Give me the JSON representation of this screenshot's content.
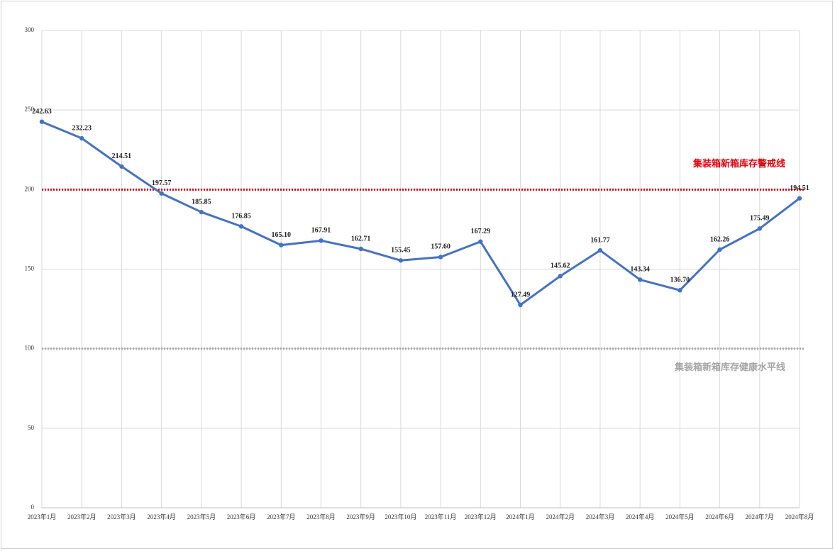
{
  "chart_data": {
    "type": "line",
    "categories": [
      "2023年1月",
      "2023年2月",
      "2023年3月",
      "2023年4月",
      "2023年5月",
      "2023年6月",
      "2023年7月",
      "2023年8月",
      "2023年9月",
      "2023年10月",
      "2023年11月",
      "2023年12月",
      "2024年1月",
      "2024年2月",
      "2024年3月",
      "2024年4月",
      "2024年5月",
      "2024年6月",
      "2024年7月",
      "2024年8月"
    ],
    "series": [
      {
        "color": "#4472c4",
        "values": [
          242.63,
          232.23,
          214.51,
          197.57,
          185.85,
          176.85,
          165.1,
          167.91,
          162.71,
          155.45,
          157.6,
          167.29,
          127.49,
          145.62,
          161.77,
          143.34,
          136.7,
          162.26,
          175.49,
          194.51
        ],
        "value_labels": [
          "242.63",
          "232.23",
          "214.51",
          "197.57",
          "185.85",
          "176.85",
          "165.10",
          "167.91",
          "162.71",
          "155.45",
          "157.60",
          "167.29",
          "127.49",
          "145.62",
          "161.77",
          "143.34",
          "136.70",
          "162.26",
          "175.49",
          "194.51"
        ]
      }
    ],
    "reference_lines": [
      {
        "value": 200,
        "label": "集装箱新箱库存警戒线",
        "color": "#e0000b"
      },
      {
        "value": 100,
        "label": "集装箱新箱库存健康水平线",
        "color": "#a6a6a6"
      }
    ],
    "ylim": [
      0,
      300
    ],
    "yticks": [
      0,
      50,
      100,
      150,
      200,
      250,
      300
    ],
    "grid": true
  }
}
